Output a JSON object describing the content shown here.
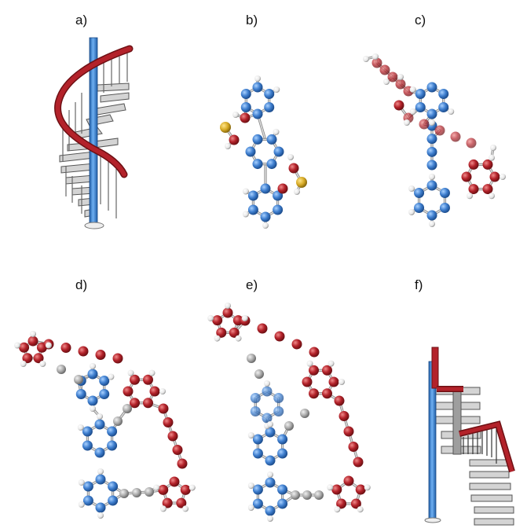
{
  "figure": {
    "panels": [
      {
        "id": "a",
        "label": "a)",
        "content": "spiral-staircase"
      },
      {
        "id": "b",
        "label": "b)",
        "content": "molecule"
      },
      {
        "id": "c",
        "label": "c)",
        "content": "molecule"
      },
      {
        "id": "d",
        "label": "d)",
        "content": "molecule"
      },
      {
        "id": "e",
        "label": "e)",
        "content": "molecule"
      },
      {
        "id": "f",
        "label": "f)",
        "content": "staircase-side-view"
      }
    ],
    "colors": {
      "blue_atom": "#3f7fcf",
      "red_atom": "#b3222a",
      "grey_atom": "#a9a9a9",
      "hydrogen": "#f2f2f2",
      "sulfur": "#d6a925",
      "pole": "#3a84d6",
      "rail": "#b3222a",
      "steps": "#c4c4c4"
    }
  }
}
